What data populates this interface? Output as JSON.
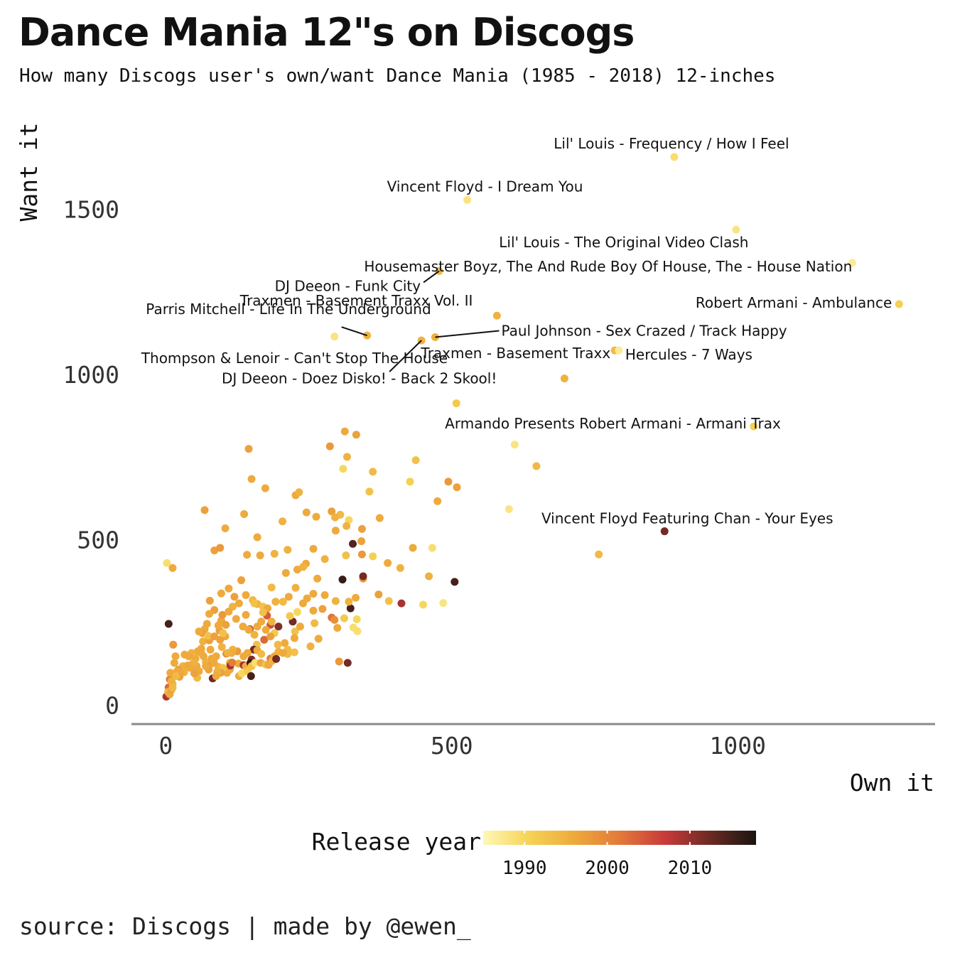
{
  "title": "Dance Mania 12\"s on Discogs",
  "subtitle": "How many Discogs user's own/want Dance Mania (1985 - 2018) 12-inches",
  "source": "source: Discogs | made by @ewen_",
  "chart_data": {
    "type": "scatter",
    "xlabel": "Own it",
    "ylabel": "Want it",
    "xlim": [
      -60,
      1345
    ],
    "ylim": [
      -55,
      1780
    ],
    "x_ticks": [
      0,
      500,
      1000
    ],
    "y_ticks": [
      0,
      500,
      1000,
      1500
    ],
    "grid": false,
    "color_scale": {
      "title": "Release year",
      "min": 1985,
      "max": 2018,
      "ticks": [
        1990,
        2000,
        2010
      ],
      "stops": [
        "#fff8b8",
        "#f5d455",
        "#eeaa3c",
        "#e27a3a",
        "#c93a3a",
        "#6a2a22",
        "#1a1410"
      ]
    },
    "labeled_points": [
      {
        "label": "Lil' Louis - Frequency / How I Feel",
        "own": 889,
        "want": 1660,
        "year": 1989
      },
      {
        "label": "Vincent Floyd - I Dream You",
        "own": 527,
        "want": 1530,
        "year": 1988
      },
      {
        "label": "Lil' Louis - The Original Video Clash",
        "own": 997,
        "want": 1440,
        "year": 1988
      },
      {
        "label": "Housemaster Boyz, The And Rude Boy Of House, The - House Nation",
        "own": 1200,
        "want": 1340,
        "year": 1987
      },
      {
        "label": "DJ Deeon - Funk City",
        "own": 478,
        "want": 1315,
        "year": 1994
      },
      {
        "label": "Robert Armani - Ambulance",
        "own": 1282,
        "want": 1215,
        "year": 1991
      },
      {
        "label": "Traxmen - Basement Traxx Vol. II",
        "own": 579,
        "want": 1180,
        "year": 1995
      },
      {
        "label": "Parris Mitchell - Life In The Underground",
        "own": 352,
        "want": 1120,
        "year": 1995
      },
      {
        "label": "Paul Johnson - Sex Crazed / Track Happy",
        "own": 471,
        "want": 1115,
        "year": 1995
      },
      {
        "label": "Thompson & Lenoir - Can't Stop The House",
        "own": 447,
        "want": 1105,
        "year": 1995
      },
      {
        "label": "Traxmen - Basement Traxx",
        "own": 785,
        "want": 1075,
        "year": 1994
      },
      {
        "label": "Hercules - 7 Ways",
        "own": 792,
        "want": 1075,
        "year": 1987
      },
      {
        "label": "DJ Deeon - Doez Disko! - Back 2 Skool!",
        "own": 697,
        "want": 990,
        "year": 1995
      },
      {
        "label": "Armando Presents Robert Armani - Armani Trax",
        "own": 1028,
        "want": 845,
        "year": 1991
      },
      {
        "label": "Vincent Floyd Featuring Chan - Your Eyes",
        "own": 872,
        "want": 528,
        "year": 2012
      }
    ],
    "points": [
      [
        295,
        1117,
        1988
      ],
      [
        508,
        915,
        1992
      ],
      [
        610,
        790,
        1988
      ],
      [
        648,
        725,
        1994
      ],
      [
        600,
        595,
        1988
      ],
      [
        757,
        458,
        1994
      ],
      [
        2,
        432,
        1989
      ],
      [
        12,
        417,
        1996
      ],
      [
        333,
        820,
        1997
      ],
      [
        313,
        830,
        1996
      ],
      [
        287,
        785,
        1998
      ],
      [
        317,
        753,
        1995
      ],
      [
        310,
        717,
        1990
      ],
      [
        362,
        708,
        1994
      ],
      [
        437,
        743,
        1993
      ],
      [
        427,
        678,
        1991
      ],
      [
        494,
        678,
        1998
      ],
      [
        509,
        661,
        1997
      ],
      [
        356,
        648,
        1993
      ],
      [
        475,
        619,
        1996
      ],
      [
        374,
        568,
        1996
      ],
      [
        290,
        588,
        1997
      ],
      [
        305,
        578,
        1994
      ],
      [
        320,
        562,
        1990
      ],
      [
        316,
        544,
        1995
      ],
      [
        343,
        535,
        1997
      ],
      [
        297,
        530,
        1996
      ],
      [
        296,
        570,
        1995
      ],
      [
        342,
        498,
        1997
      ],
      [
        466,
        478,
        1989
      ],
      [
        432,
        478,
        1996
      ],
      [
        343,
        458,
        1998
      ],
      [
        362,
        452,
        1991
      ],
      [
        315,
        455,
        1993
      ],
      [
        278,
        444,
        1995
      ],
      [
        388,
        432,
        1996
      ],
      [
        410,
        417,
        1995
      ],
      [
        460,
        392,
        1995
      ],
      [
        345,
        385,
        1998
      ],
      [
        390,
        317,
        1993
      ],
      [
        372,
        337,
        1997
      ],
      [
        412,
        310,
        2009
      ],
      [
        485,
        311,
        1988
      ],
      [
        450,
        306,
        1990
      ],
      [
        505,
        375,
        2015
      ],
      [
        327,
        490,
        2014
      ],
      [
        309,
        382,
        2016
      ],
      [
        345,
        392,
        2012
      ],
      [
        323,
        295,
        2015
      ],
      [
        290,
        267,
        2002
      ],
      [
        312,
        265,
        1992
      ],
      [
        334,
        262,
        1990
      ],
      [
        328,
        237,
        1989
      ],
      [
        335,
        226,
        1989
      ],
      [
        297,
        317,
        1995
      ],
      [
        320,
        315,
        1995
      ],
      [
        278,
        335,
        1996
      ],
      [
        258,
        339,
        1996
      ],
      [
        332,
        327,
        1996
      ],
      [
        303,
        134,
        1998
      ],
      [
        318,
        130,
        2012
      ],
      [
        145,
        777,
        1997
      ],
      [
        68,
        592,
        1997
      ],
      [
        150,
        686,
        1996
      ],
      [
        174,
        658,
        1996
      ],
      [
        227,
        637,
        1996
      ],
      [
        233,
        646,
        1995
      ],
      [
        137,
        580,
        1996
      ],
      [
        104,
        537,
        1996
      ],
      [
        204,
        558,
        1995
      ],
      [
        246,
        585,
        1996
      ],
      [
        263,
        572,
        1996
      ],
      [
        160,
        510,
        1996
      ],
      [
        85,
        470,
        1997
      ],
      [
        95,
        478,
        1998
      ],
      [
        142,
        457,
        1996
      ],
      [
        213,
        472,
        1995
      ],
      [
        258,
        475,
        1996
      ],
      [
        245,
        430,
        1996
      ],
      [
        230,
        412,
        1996
      ],
      [
        190,
        460,
        1995
      ],
      [
        165,
        455,
        1996
      ],
      [
        210,
        402,
        1996
      ],
      [
        240,
        420,
        1995
      ],
      [
        265,
        385,
        1996
      ],
      [
        132,
        380,
        1997
      ],
      [
        110,
        355,
        1996
      ],
      [
        97,
        340,
        1996
      ],
      [
        77,
        318,
        1997
      ],
      [
        140,
        335,
        1996
      ],
      [
        152,
        320,
        1994
      ],
      [
        185,
        358,
        1994
      ],
      [
        215,
        330,
        1996
      ],
      [
        227,
        357,
        1995
      ],
      [
        247,
        325,
        1996
      ],
      [
        274,
        293,
        1997
      ],
      [
        192,
        315,
        1995
      ],
      [
        160,
        308,
        1995
      ],
      [
        170,
        300,
        1993
      ],
      [
        178,
        295,
        1996
      ],
      [
        205,
        315,
        1994
      ],
      [
        230,
        284,
        1990
      ],
      [
        260,
        250,
        1994
      ],
      [
        240,
        310,
        1996
      ],
      [
        222,
        255,
        2012
      ],
      [
        217,
        272,
        1992
      ],
      [
        197,
        240,
        2011
      ],
      [
        183,
        245,
        2005
      ],
      [
        177,
        273,
        2004
      ],
      [
        147,
        232,
        2005
      ],
      [
        135,
        240,
        1996
      ],
      [
        155,
        215,
        1995
      ],
      [
        167,
        255,
        1996
      ],
      [
        190,
        220,
        1992
      ],
      [
        185,
        255,
        1995
      ],
      [
        208,
        190,
        1996
      ],
      [
        196,
        185,
        1994
      ],
      [
        197,
        164,
        1995
      ],
      [
        213,
        170,
        1994
      ],
      [
        226,
        225,
        1993
      ],
      [
        235,
        240,
        1996
      ],
      [
        258,
        288,
        1996
      ],
      [
        295,
        260,
        1999
      ],
      [
        300,
        236,
        1996
      ],
      [
        267,
        203,
        1996
      ],
      [
        253,
        180,
        1995
      ],
      [
        225,
        205,
        1996
      ],
      [
        225,
        162,
        1993
      ],
      [
        213,
        157,
        1994
      ],
      [
        172,
        200,
        2003
      ],
      [
        159,
        185,
        1993
      ],
      [
        154,
        170,
        2012
      ],
      [
        150,
        140,
        2011
      ],
      [
        143,
        160,
        1996
      ],
      [
        136,
        150,
        1996
      ],
      [
        127,
        128,
        1996
      ],
      [
        125,
        165,
        1998
      ],
      [
        117,
        170,
        1995
      ],
      [
        112,
        130,
        1995
      ],
      [
        115,
        160,
        1996
      ],
      [
        104,
        210,
        1996
      ],
      [
        106,
        158,
        2001
      ],
      [
        98,
        178,
        1995
      ],
      [
        95,
        200,
        1997
      ],
      [
        94,
        228,
        1997
      ],
      [
        97,
        258,
        1996
      ],
      [
        99,
        275,
        1998
      ],
      [
        85,
        290,
        1997
      ],
      [
        76,
        278,
        1996
      ],
      [
        72,
        248,
        1996
      ],
      [
        68,
        232,
        1996
      ],
      [
        64,
        220,
        1997
      ],
      [
        58,
        225,
        1996
      ],
      [
        65,
        195,
        1995
      ],
      [
        62,
        173,
        1996
      ],
      [
        56,
        165,
        1996
      ],
      [
        52,
        143,
        1996
      ],
      [
        54,
        120,
        1996
      ],
      [
        48,
        130,
        1995
      ],
      [
        45,
        160,
        1995
      ],
      [
        40,
        150,
        1996
      ],
      [
        33,
        155,
        1996
      ],
      [
        30,
        120,
        1995
      ],
      [
        22,
        110,
        1997
      ],
      [
        17,
        150,
        1996
      ],
      [
        13,
        185,
        1998
      ],
      [
        15,
        130,
        1996
      ],
      [
        20,
        105,
        1996
      ],
      [
        5,
        248,
        2015
      ],
      [
        7,
        80,
        2001
      ],
      [
        5,
        56,
        2003
      ],
      [
        1,
        28,
        2009
      ],
      [
        4,
        42,
        1994
      ],
      [
        7,
        35,
        1996
      ],
      [
        10,
        49,
        1997
      ],
      [
        12,
        66,
        1994
      ],
      [
        8,
        100,
        1996
      ],
      [
        10,
        75,
        1995
      ],
      [
        12,
        55,
        1994
      ],
      [
        70,
        132,
        1995
      ],
      [
        75,
        110,
        1997
      ],
      [
        82,
        83,
        2012
      ],
      [
        81,
        129,
        1997
      ],
      [
        88,
        150,
        1996
      ],
      [
        92,
        118,
        1995
      ],
      [
        108,
        160,
        1995
      ],
      [
        112,
        110,
        1996
      ],
      [
        113,
        122,
        2009
      ],
      [
        116,
        131,
        2001
      ],
      [
        128,
        90,
        1996
      ],
      [
        133,
        98,
        1990
      ],
      [
        136,
        123,
        2009
      ],
      [
        140,
        120,
        1996
      ],
      [
        143,
        105,
        1992
      ],
      [
        148,
        130,
        2016
      ],
      [
        149,
        90,
        2015
      ],
      [
        150,
        120,
        1993
      ],
      [
        156,
        130,
        1989
      ],
      [
        160,
        168,
        1996
      ],
      [
        166,
        130,
        1996
      ],
      [
        167,
        157,
        1994
      ],
      [
        175,
        125,
        1993
      ],
      [
        180,
        124,
        1996
      ],
      [
        183,
        143,
        2001
      ],
      [
        186,
        136,
        1995
      ],
      [
        190,
        150,
        1996
      ],
      [
        193,
        142,
        2012
      ],
      [
        107,
        100,
        1996
      ],
      [
        100,
        115,
        1993
      ],
      [
        96,
        100,
        1997
      ],
      [
        90,
        103,
        1995
      ],
      [
        88,
        90,
        1996
      ],
      [
        84,
        133,
        1996
      ],
      [
        80,
        143,
        1996
      ],
      [
        78,
        170,
        1996
      ],
      [
        76,
        198,
        1997
      ],
      [
        74,
        212,
        1993
      ],
      [
        70,
        120,
        1996
      ],
      [
        66,
        150,
        1996
      ],
      [
        62,
        160,
        1996
      ],
      [
        58,
        105,
        1996
      ],
      [
        55,
        85,
        1994
      ],
      [
        50,
        98,
        1997
      ],
      [
        43,
        115,
        1996
      ],
      [
        38,
        122,
        1996
      ],
      [
        32,
        102,
        1995
      ],
      [
        26,
        100,
        1996
      ],
      [
        24,
        88,
        1997
      ],
      [
        18,
        90,
        1994
      ],
      [
        120,
        330,
        1997
      ],
      [
        128,
        310,
        1996
      ],
      [
        117,
        300,
        1995
      ],
      [
        110,
        285,
        1996
      ],
      [
        123,
        263,
        1996
      ],
      [
        105,
        245,
        1997
      ],
      [
        100,
        220,
        1993
      ],
      [
        92,
        243,
        1996
      ],
      [
        85,
        210,
        1997
      ],
      [
        140,
        275,
        1996
      ],
      [
        145,
        230,
        1996
      ],
      [
        160,
        240,
        1996
      ],
      [
        175,
        230,
        1996
      ],
      [
        183,
        210,
        1997
      ],
      [
        205,
        160,
        1996
      ],
      [
        155,
        310,
        1993
      ],
      [
        170,
        283,
        1993
      ]
    ]
  }
}
